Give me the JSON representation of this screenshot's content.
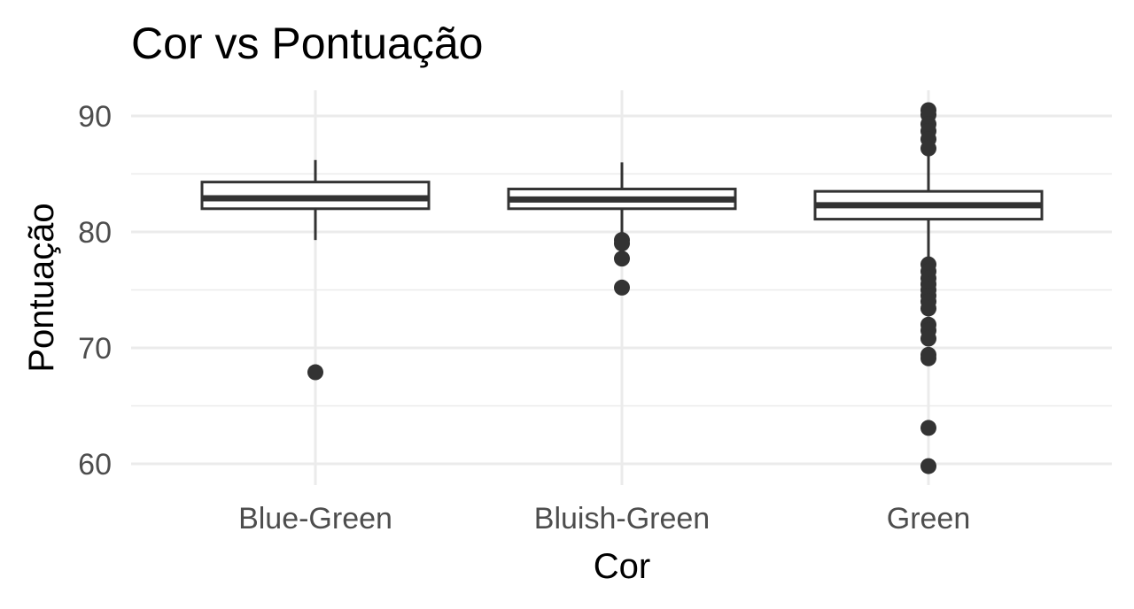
{
  "chart_data": {
    "type": "boxplot",
    "title": "Cor vs Pontuação",
    "xlabel": "Cor",
    "ylabel": "Pontuação",
    "categories": [
      "Blue-Green",
      "Bluish-Green",
      "Green"
    ],
    "ylim": [
      58.5,
      92
    ],
    "yticks": [
      60,
      70,
      80,
      90
    ],
    "grid": true,
    "colors": {
      "box_stroke": "#333333",
      "box_fill": "#ffffff",
      "outlier": "#333333",
      "grid": "#ebebeb",
      "tick_text": "#4d4d4d",
      "text": "#000000"
    },
    "boxes": [
      {
        "category": "Blue-Green",
        "whisker_low": 79.3,
        "q1": 82.0,
        "median": 82.9,
        "q3": 84.3,
        "whisker_high": 86.2,
        "outliers": [
          67.9
        ]
      },
      {
        "category": "Bluish-Green",
        "whisker_low": 79.0,
        "q1": 82.0,
        "median": 82.8,
        "q3": 83.7,
        "whisker_high": 86.0,
        "outliers": [
          79.3,
          79.0,
          77.7,
          75.2
        ]
      },
      {
        "category": "Green",
        "whisker_low": 77.6,
        "q1": 81.1,
        "median": 82.3,
        "q3": 83.5,
        "whisker_high": 87.0,
        "outliers": [
          90.5,
          90.1,
          89.3,
          88.7,
          88.0,
          87.2,
          77.2,
          76.6,
          76.0,
          75.5,
          75.0,
          74.5,
          74.0,
          73.4,
          72.0,
          71.5,
          70.8,
          69.4,
          69.1,
          63.1,
          59.8
        ]
      }
    ]
  }
}
